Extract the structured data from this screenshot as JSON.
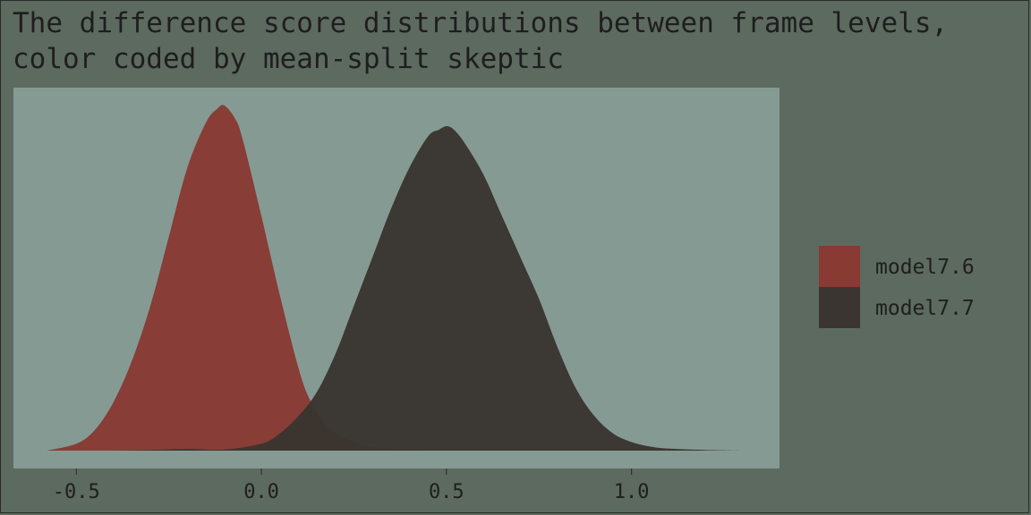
{
  "chart_data": {
    "type": "area",
    "title": "The difference score distributions between frame levels, color coded by mean-split skeptic",
    "xlabel": "",
    "ylabel": "",
    "xlim": [
      -0.67,
      1.4
    ],
    "x_ticks": [
      -0.5,
      0.0,
      0.5,
      1.0
    ],
    "x_tick_labels": [
      "-0.5",
      "0.0",
      "0.5",
      "1.0"
    ],
    "ylim": [
      0,
      1.0
    ],
    "y_ticks_shown": false,
    "grid": false,
    "legend_position": "right",
    "colors": {
      "page_background": "#5d6a5f",
      "panel_background": "#869a94",
      "text": "#1e1e1e"
    },
    "series": [
      {
        "name": "model7.6",
        "color": "#883a33",
        "opacity": 0.97,
        "x": [
          -0.58,
          -0.5,
          -0.45,
          -0.4,
          -0.35,
          -0.3,
          -0.25,
          -0.2,
          -0.15,
          -0.12,
          -0.1,
          -0.07,
          -0.05,
          0.0,
          0.05,
          0.1,
          0.13,
          0.17,
          0.2,
          0.25,
          0.3,
          0.4,
          0.5,
          0.7,
          0.9
        ],
        "y": [
          0.0,
          0.02,
          0.06,
          0.14,
          0.26,
          0.42,
          0.62,
          0.82,
          0.95,
          0.99,
          1.0,
          0.96,
          0.9,
          0.68,
          0.45,
          0.24,
          0.15,
          0.08,
          0.05,
          0.025,
          0.01,
          0.003,
          0.001,
          0.0,
          0.0
        ]
      },
      {
        "name": "model7.7",
        "color": "#3a3530",
        "opacity": 0.97,
        "x": [
          -0.4,
          -0.3,
          -0.2,
          -0.1,
          0.0,
          0.05,
          0.1,
          0.15,
          0.2,
          0.25,
          0.3,
          0.35,
          0.4,
          0.45,
          0.48,
          0.5,
          0.52,
          0.55,
          0.6,
          0.65,
          0.7,
          0.75,
          0.8,
          0.85,
          0.9,
          0.95,
          1.0,
          1.05,
          1.1,
          1.2,
          1.3
        ],
        "y": [
          0.0,
          0.002,
          0.005,
          0.003,
          0.02,
          0.05,
          0.1,
          0.17,
          0.28,
          0.42,
          0.56,
          0.7,
          0.82,
          0.91,
          0.93,
          0.94,
          0.93,
          0.89,
          0.8,
          0.68,
          0.56,
          0.44,
          0.3,
          0.18,
          0.1,
          0.05,
          0.025,
          0.012,
          0.006,
          0.002,
          0.0
        ]
      }
    ]
  }
}
